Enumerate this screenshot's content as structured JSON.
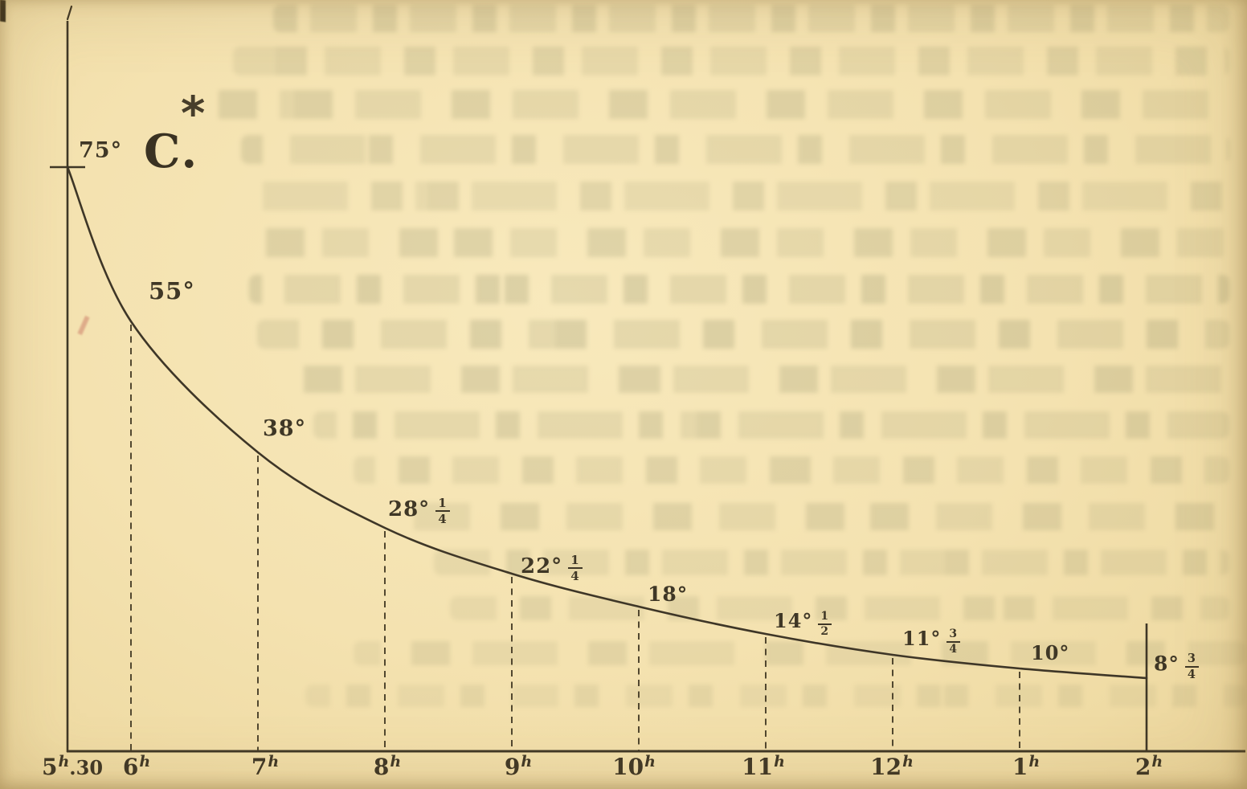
{
  "figure": {
    "curve_label": "C.",
    "footnote_marker": "*"
  },
  "chart_data": {
    "type": "line",
    "title": "C.",
    "footnote_marker": "*",
    "x_tick_labels": [
      "5h30",
      "6h",
      "7h",
      "8h",
      "9h",
      "10h",
      "11h",
      "12h",
      "1h",
      "2h"
    ],
    "x_hours": [
      5.5,
      6,
      7,
      8,
      9,
      10,
      11,
      12,
      13,
      14
    ],
    "y_values_temp_c": [
      75,
      55,
      38,
      28.25,
      22.25,
      18,
      14.5,
      11.75,
      10,
      8.75
    ],
    "degree_symbol": "°",
    "point_labels": [
      {
        "deg": "75"
      },
      {
        "deg": "55"
      },
      {
        "deg": "38"
      },
      {
        "deg": "28",
        "num": "1",
        "den": "4"
      },
      {
        "deg": "22",
        "num": "1",
        "den": "4"
      },
      {
        "deg": "18"
      },
      {
        "deg": "14",
        "num": "1",
        "den": "2"
      },
      {
        "deg": "11",
        "num": "3",
        "den": "4"
      },
      {
        "deg": "10"
      },
      {
        "deg": "8",
        "num": "3",
        "den": "4"
      }
    ],
    "x_tick_parts": [
      {
        "base": "5",
        "sup": "h",
        "rest": ".30"
      },
      {
        "base": "6",
        "sup": "h",
        "rest": ""
      },
      {
        "base": "7",
        "sup": "h",
        "rest": ""
      },
      {
        "base": "8",
        "sup": "h",
        "rest": ""
      },
      {
        "base": "9",
        "sup": "h",
        "rest": ""
      },
      {
        "base": "10",
        "sup": "h",
        "rest": ""
      },
      {
        "base": "11",
        "sup": "h",
        "rest": ""
      },
      {
        "base": "12",
        "sup": "h",
        "rest": ""
      },
      {
        "base": "1",
        "sup": "h",
        "rest": ""
      },
      {
        "base": "2",
        "sup": "h",
        "rest": ""
      }
    ],
    "y_axis_tick_label": "75°",
    "gridlines": "dashed vertical line at each hour from curve down to x-axis; solid ordinate at 2h",
    "legend_position": "none",
    "ylim": [
      0,
      78
    ],
    "ink_color": "#3f3726",
    "paper_color": "#f4e2b0"
  }
}
